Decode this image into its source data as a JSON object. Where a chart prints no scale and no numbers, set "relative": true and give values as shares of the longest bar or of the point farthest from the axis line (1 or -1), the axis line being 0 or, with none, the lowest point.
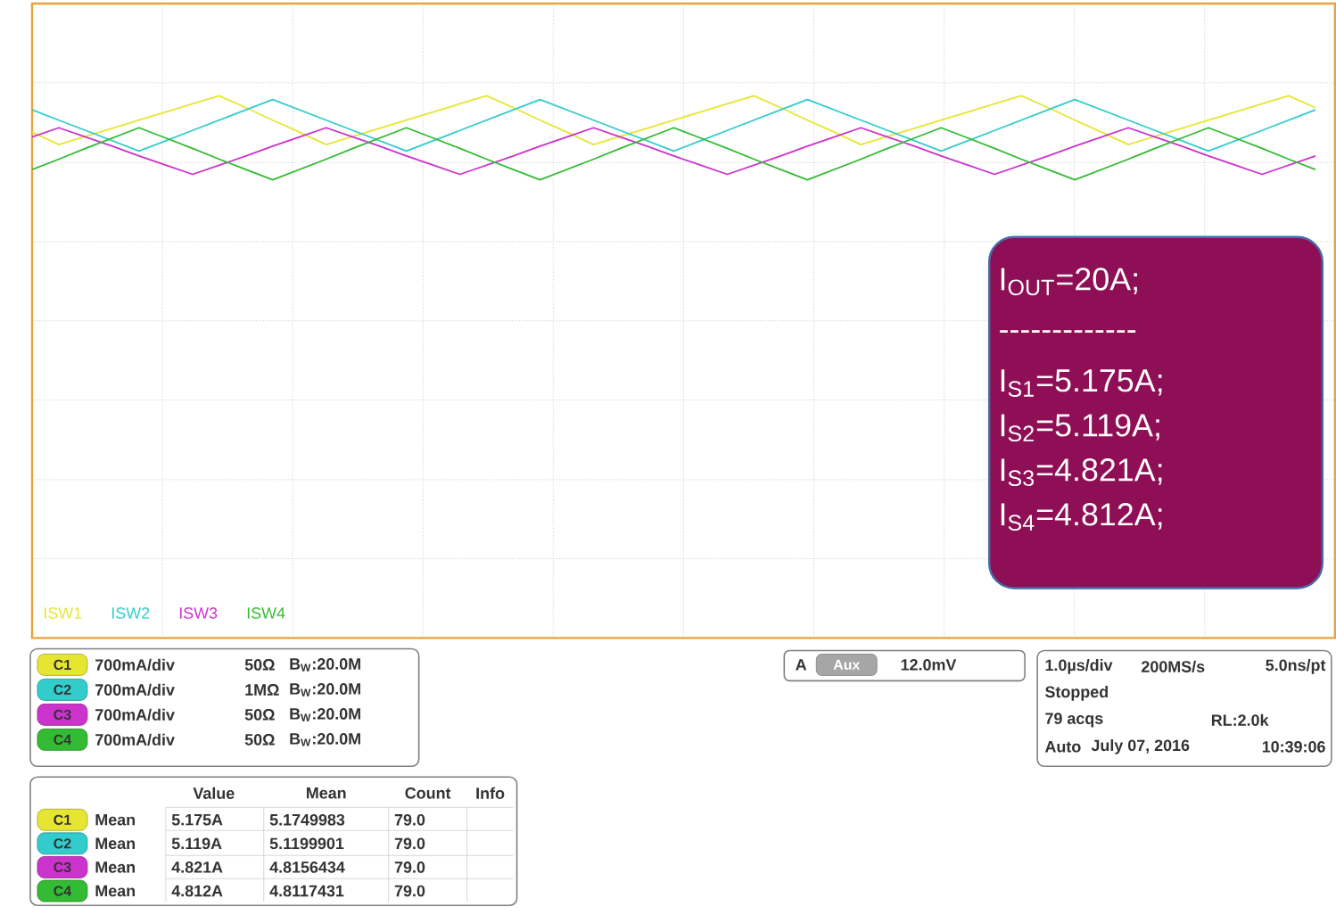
{
  "chart_data": {
    "type": "line",
    "relative": true,
    "grid": true,
    "tick_labels": false,
    "marker": "none",
    "legend": "bottom left",
    "categories": [
      null,
      null,
      null,
      null,
      null,
      null,
      null,
      null,
      null,
      null,
      null,
      null,
      null,
      null,
      null,
      null,
      null,
      null,
      null,
      null,
      null,
      null,
      null,
      null,
      null,
      null,
      null,
      null,
      null,
      null,
      null,
      null,
      null,
      null,
      null,
      null,
      null,
      null,
      null,
      null,
      null,
      null,
      null,
      null,
      null,
      null,
      null,
      null,
      null
    ],
    "series": [
      {
        "name": "ISW1",
        "color": "#e6e632",
        "values": [
          0.933,
          0.91,
          0.925,
          0.94,
          0.955,
          0.97,
          0.985,
          1,
          0.978,
          0.955,
          0.933,
          0.91,
          0.925,
          0.94,
          0.955,
          0.97,
          0.985,
          1,
          0.978,
          0.955,
          0.933,
          0.91,
          0.925,
          0.94,
          0.955,
          0.97,
          0.985,
          1,
          0.978,
          0.955,
          0.933,
          0.91,
          0.925,
          0.94,
          0.955,
          0.97,
          0.985,
          1,
          0.978,
          0.955,
          0.933,
          0.91,
          0.925,
          0.94,
          0.955,
          0.97,
          0.985,
          1,
          0.978
        ]
      },
      {
        "name": "ISW2",
        "color": "#33cccc",
        "values": [
          0.974,
          0.955,
          0.936,
          0.917,
          0.898,
          0.917,
          0.936,
          0.955,
          0.974,
          0.993,
          0.974,
          0.955,
          0.936,
          0.917,
          0.898,
          0.917,
          0.936,
          0.955,
          0.974,
          0.993,
          0.974,
          0.955,
          0.936,
          0.917,
          0.898,
          0.917,
          0.936,
          0.955,
          0.974,
          0.993,
          0.974,
          0.955,
          0.936,
          0.917,
          0.898,
          0.917,
          0.936,
          0.955,
          0.974,
          0.993,
          0.974,
          0.955,
          0.936,
          0.917,
          0.898,
          0.917,
          0.936,
          0.955,
          0.974
        ]
      },
      {
        "name": "ISW3",
        "color": "#cc33cc",
        "values": [
          0.924,
          0.941,
          0.924,
          0.907,
          0.889,
          0.872,
          0.855,
          0.872,
          0.889,
          0.907,
          0.924,
          0.941,
          0.924,
          0.907,
          0.889,
          0.872,
          0.855,
          0.872,
          0.889,
          0.907,
          0.924,
          0.941,
          0.924,
          0.907,
          0.889,
          0.872,
          0.855,
          0.872,
          0.889,
          0.907,
          0.924,
          0.941,
          0.924,
          0.907,
          0.889,
          0.872,
          0.855,
          0.872,
          0.889,
          0.907,
          0.924,
          0.941,
          0.924,
          0.907,
          0.889,
          0.872,
          0.855,
          0.872,
          0.889
        ]
      },
      {
        "name": "ISW4",
        "color": "#33bb33",
        "values": [
          0.864,
          0.883,
          0.903,
          0.922,
          0.941,
          0.922,
          0.903,
          0.883,
          0.864,
          0.845,
          0.864,
          0.883,
          0.903,
          0.922,
          0.941,
          0.922,
          0.903,
          0.883,
          0.864,
          0.845,
          0.864,
          0.883,
          0.903,
          0.922,
          0.941,
          0.922,
          0.903,
          0.883,
          0.864,
          0.845,
          0.864,
          0.883,
          0.903,
          0.922,
          0.941,
          0.922,
          0.903,
          0.883,
          0.864,
          0.845,
          0.864,
          0.883,
          0.903,
          0.922,
          0.941,
          0.922,
          0.903,
          0.883,
          0.864
        ]
      }
    ],
    "annotations": [
      "I$_{OUT}$=20A;",
      "-------------",
      "I$_{S1}$=5.175A;",
      "I$_{S2}$=5.119A;",
      "I$_{S3}$=4.821A;",
      "I$_{S4}$=4.812A;",
      "C1",
      "700mA/div",
      "50Ω",
      "B$_{W}$:20.0M",
      "C2",
      "700mA/div",
      "1MΩ",
      "B$_{W}$:20.0M",
      "C3",
      "700mA/div",
      "50Ω",
      "B$_{W}$:20.0M",
      "C4",
      "700mA/div",
      "50Ω",
      "B$_{W}$:20.0M",
      "A",
      "Aux",
      "12.0mV",
      "1.0µs/div",
      "200MS/s",
      "5.0ns/pt",
      "Stopped",
      "79 acqs",
      "RL:2.0k",
      "Auto",
      "July 07, 2016",
      "10:39:06",
      "Value",
      "Mean",
      "Count",
      "Info",
      "C1",
      "Mean",
      "5.175A",
      "5.1749983",
      "79.0",
      "C2",
      "Mean",
      "5.119A",
      "5.1199901",
      "79.0",
      "C3",
      "Mean",
      "4.821A",
      "4.8156434",
      "79.0",
      "C4",
      "Mean",
      "4.812A",
      "4.8117431",
      "79.0"
    ]
  }
}
